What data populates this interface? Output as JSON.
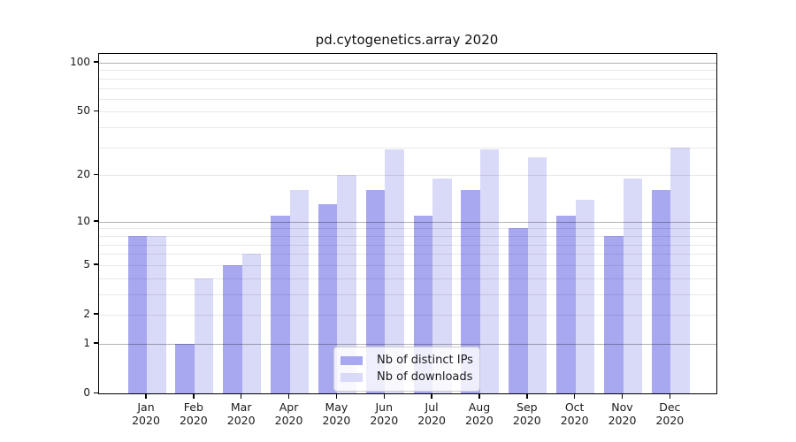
{
  "title": "pd.cytogenetics.array 2020",
  "colors": {
    "distinct_ips_bar": "#a8a8f0",
    "downloads_bar": "#d9d9f8",
    "major_gridline": "#b3b3b3",
    "minor_gridline": "#e9e9e9",
    "axis": "#000000",
    "text": "#1a1a1a"
  },
  "legend": {
    "items": [
      {
        "label": "Nb of distinct IPs",
        "color": "#a8a8f0"
      },
      {
        "label": "Nb of downloads",
        "color": "#d9d9f8"
      }
    ]
  },
  "chart_data": {
    "type": "bar",
    "title": "pd.cytogenetics.array 2020",
    "categories": [
      "Jan 2020",
      "Feb 2020",
      "Mar 2020",
      "Apr 2020",
      "May 2020",
      "Jun 2020",
      "Jul 2020",
      "Aug 2020",
      "Sep 2020",
      "Oct 2020",
      "Nov 2020",
      "Dec 2020"
    ],
    "series": [
      {
        "name": "Nb of distinct IPs",
        "color": "#a8a8f0",
        "values": [
          8,
          1,
          5,
          11,
          13,
          16,
          11,
          16,
          9,
          11,
          8,
          16
        ]
      },
      {
        "name": "Nb of downloads",
        "color": "#d9d9f8",
        "values": [
          8,
          4,
          6,
          16,
          20,
          29,
          19,
          29,
          26,
          14,
          19,
          30
        ]
      }
    ],
    "xlabel": "",
    "ylabel": "",
    "y_scale": "log(1+v)",
    "y_ticks": [
      0,
      1,
      2,
      5,
      10,
      20,
      50,
      100
    ],
    "y_major_gridlines": [
      1,
      10,
      100
    ],
    "y_minor_gridlines": [
      2,
      3,
      4,
      5,
      6,
      7,
      8,
      9,
      20,
      30,
      40,
      50,
      60,
      70,
      80,
      90
    ],
    "ylim": [
      0,
      113
    ],
    "grid": true,
    "legend_position": "lower center (inside axes)"
  }
}
